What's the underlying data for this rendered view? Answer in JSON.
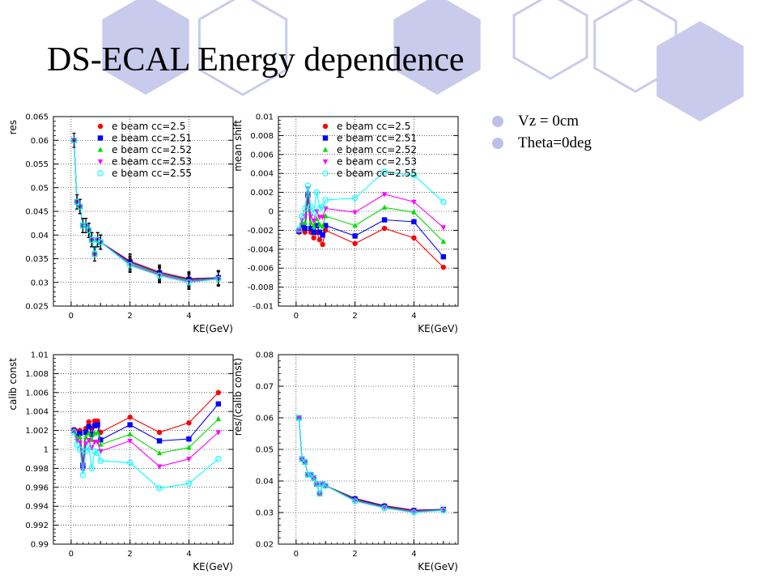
{
  "slide": {
    "title": "DS-ECAL Energy dependence",
    "bullets": [
      "Vz = 0cm",
      "Theta=0deg"
    ],
    "hex_color": "#c9cbed"
  },
  "chart_data": [
    {
      "type": "line",
      "panel": "top-left",
      "xlabel": "KE(GeV)",
      "ylabel": "res",
      "xlim": [
        -0.6,
        5.5
      ],
      "ylim": [
        0.025,
        0.065
      ],
      "x_ticks": [
        0,
        2,
        4
      ],
      "x_tick_labels": [
        "0",
        "2",
        "4"
      ],
      "y_ticks": [
        0.025,
        0.03,
        0.035,
        0.04,
        0.045,
        0.05,
        0.055,
        0.06,
        0.065
      ],
      "y_tick_labels": [
        "0.025",
        "0.03",
        "0.035",
        "0.04",
        "0.045",
        "0.05",
        "0.055",
        "0.06",
        "0.065"
      ],
      "grid": true,
      "legend": "top-right",
      "x": [
        0.1,
        0.2,
        0.3,
        0.4,
        0.5,
        0.6,
        0.7,
        0.8,
        0.9,
        1,
        2,
        3,
        4,
        5
      ],
      "error_bars": true,
      "yerr": 0.0015,
      "series": [
        {
          "name": "e beam cc=2.5",
          "color": "#ff0000",
          "marker": "circle-cross",
          "values": [
            0.06,
            0.047,
            0.046,
            0.042,
            0.042,
            0.041,
            0.039,
            0.036,
            0.039,
            0.0385,
            0.0345,
            0.0322,
            0.0308,
            0.031
          ]
        },
        {
          "name": "e beam cc=2.51",
          "color": "#0000ff",
          "marker": "square",
          "values": [
            0.06,
            0.047,
            0.046,
            0.042,
            0.042,
            0.041,
            0.039,
            0.036,
            0.039,
            0.0385,
            0.0343,
            0.032,
            0.0306,
            0.031
          ]
        },
        {
          "name": "e beam cc=2.52",
          "color": "#00dd00",
          "marker": "triangle-up",
          "values": [
            0.06,
            0.047,
            0.046,
            0.042,
            0.042,
            0.041,
            0.039,
            0.036,
            0.039,
            0.0385,
            0.034,
            0.0318,
            0.0304,
            0.0309
          ]
        },
        {
          "name": "e beam cc=2.53",
          "color": "#ff00ff",
          "marker": "triangle-down",
          "values": [
            0.06,
            0.047,
            0.046,
            0.042,
            0.042,
            0.041,
            0.039,
            0.036,
            0.039,
            0.0385,
            0.0338,
            0.0316,
            0.0302,
            0.0308
          ]
        },
        {
          "name": "e beam cc=2.55",
          "color": "#00ffff",
          "marker": "circle-open",
          "values": [
            0.06,
            0.047,
            0.046,
            0.042,
            0.042,
            0.041,
            0.039,
            0.036,
            0.039,
            0.0385,
            0.0336,
            0.0314,
            0.03,
            0.0307
          ]
        }
      ]
    },
    {
      "type": "line",
      "panel": "top-right",
      "xlabel": "KE(GeV)",
      "ylabel": "mean shift",
      "xlim": [
        -0.6,
        5.5
      ],
      "ylim": [
        -0.01,
        0.01
      ],
      "x_ticks": [
        0,
        2,
        4
      ],
      "x_tick_labels": [
        "0",
        "2",
        "4"
      ],
      "y_ticks": [
        -0.01,
        -0.008,
        -0.006,
        -0.004,
        -0.002,
        0,
        0.002,
        0.004,
        0.006,
        0.008,
        0.01
      ],
      "y_tick_labels": [
        "-0.01",
        "-0.008",
        "-0.006",
        "-0.004",
        "-0.002",
        "0",
        "0.002",
        "0.004",
        "0.006",
        "0.008",
        "0.01"
      ],
      "grid": true,
      "legend": "top-right",
      "x": [
        0.1,
        0.2,
        0.3,
        0.4,
        0.5,
        0.6,
        0.7,
        0.8,
        0.9,
        1,
        2,
        3,
        4,
        5
      ],
      "series": [
        {
          "name": "e beam cc=2.5",
          "color": "#ff0000",
          "marker": "circle-cross",
          "values": [
            -0.0022,
            -0.0018,
            -0.0022,
            0.0015,
            -0.0022,
            -0.0028,
            -0.0022,
            -0.003,
            -0.0035,
            -0.002,
            -0.0034,
            -0.0018,
            -0.0028,
            -0.0059
          ]
        },
        {
          "name": "e beam cc=2.51",
          "color": "#0000ff",
          "marker": "square",
          "values": [
            -0.0021,
            -0.0015,
            -0.0018,
            0.0018,
            -0.0018,
            -0.0022,
            -0.0015,
            -0.0022,
            -0.0025,
            -0.0015,
            -0.0026,
            -0.0009,
            -0.0011,
            -0.0048
          ]
        },
        {
          "name": "e beam cc=2.52",
          "color": "#00dd00",
          "marker": "triangle-up",
          "values": [
            -0.002,
            -0.0012,
            -0.0012,
            0.0021,
            -0.0012,
            -0.0016,
            -0.0008,
            -0.0014,
            -0.0016,
            -0.0005,
            -0.0015,
            0.0004,
            -0.0001,
            -0.0032
          ]
        },
        {
          "name": "e beam cc=2.53",
          "color": "#ff00ff",
          "marker": "triangle-down",
          "values": [
            -0.002,
            -0.0009,
            -0.0005,
            0.0024,
            -0.0005,
            -0.001,
            0.0,
            -0.0006,
            -0.0006,
            0.0003,
            -0.0001,
            0.0018,
            0.001,
            -0.0017
          ]
        },
        {
          "name": "e beam cc=2.55",
          "color": "#00ffff",
          "marker": "circle-open",
          "values": [
            -0.0019,
            -0.0005,
            0.0003,
            0.0027,
            0.0005,
            -0.0002,
            0.002,
            0.0003,
            0.0005,
            0.0012,
            0.0014,
            0.0042,
            0.0038,
            0.001
          ]
        }
      ]
    },
    {
      "type": "line",
      "panel": "bottom-left",
      "xlabel": "KE(GeV)",
      "ylabel": "calib const",
      "xlim": [
        -0.6,
        5.5
      ],
      "ylim": [
        0.99,
        1.01
      ],
      "x_ticks": [
        0,
        2,
        4
      ],
      "x_tick_labels": [
        "0",
        "2",
        "4"
      ],
      "y_ticks": [
        0.99,
        0.992,
        0.994,
        0.996,
        0.998,
        1.0,
        1.002,
        1.004,
        1.006,
        1.008,
        1.01
      ],
      "y_tick_labels": [
        "0.99",
        "0.992",
        "0.994",
        "0.996",
        "0.998",
        "1",
        "1.002",
        "1.004",
        "1.006",
        "1.008",
        "1.01"
      ],
      "grid": true,
      "legend": "none",
      "x": [
        0.1,
        0.2,
        0.3,
        0.4,
        0.5,
        0.6,
        0.7,
        0.8,
        0.9,
        1,
        2,
        3,
        4,
        5
      ],
      "series": [
        {
          "name": "e beam cc=2.5",
          "color": "#ff0000",
          "marker": "circle-cross",
          "values": [
            1.0021,
            1.0019,
            1.002,
            0.9985,
            1.0022,
            1.0029,
            1.0022,
            1.003,
            1.003,
            1.0018,
            1.0034,
            1.0018,
            1.0028,
            1.006
          ]
        },
        {
          "name": "e beam cc=2.51",
          "color": "#0000ff",
          "marker": "square",
          "values": [
            1.002,
            1.0016,
            1.0017,
            0.9983,
            1.0018,
            1.0024,
            1.0016,
            1.0025,
            1.0026,
            1.001,
            1.0026,
            1.0009,
            1.0011,
            1.0048
          ]
        },
        {
          "name": "e beam cc=2.52",
          "color": "#00dd00",
          "marker": "triangle-up",
          "values": [
            1.002,
            1.0012,
            1.0013,
            0.998,
            1.0013,
            1.0017,
            1.001,
            1.0017,
            1.0018,
            1.0005,
            1.0016,
            0.9996,
            1.0002,
            1.0032
          ]
        },
        {
          "name": "e beam cc=2.53",
          "color": "#ff00ff",
          "marker": "triangle-down",
          "values": [
            1.0019,
            1.0009,
            1.0007,
            0.9978,
            1.0006,
            1.001,
            1.0002,
            1.0008,
            1.0008,
            0.9998,
            1.0009,
            0.9982,
            0.999,
            1.0018
          ]
        },
        {
          "name": "e beam cc=2.55",
          "color": "#00ffff",
          "marker": "circle-open",
          "values": [
            1.0018,
            1.0005,
            1.0,
            0.9973,
            0.9998,
            1.0003,
            0.998,
            0.9998,
            0.9996,
            0.9988,
            0.9986,
            0.9959,
            0.9964,
            0.999
          ]
        }
      ]
    },
    {
      "type": "line",
      "panel": "bottom-right",
      "xlabel": "KE(GeV)",
      "ylabel": "res/(calib const)",
      "xlim": [
        -0.6,
        5.5
      ],
      "ylim": [
        0.02,
        0.08
      ],
      "x_ticks": [
        0,
        2,
        4
      ],
      "x_tick_labels": [
        "0",
        "2",
        "4"
      ],
      "y_ticks": [
        0.02,
        0.03,
        0.04,
        0.05,
        0.06,
        0.07,
        0.08
      ],
      "y_tick_labels": [
        "0.02",
        "0.03",
        "0.04",
        "0.05",
        "0.06",
        "0.07",
        "0.08"
      ],
      "grid": true,
      "legend": "none",
      "x": [
        0.1,
        0.2,
        0.3,
        0.4,
        0.5,
        0.6,
        0.7,
        0.8,
        0.9,
        1,
        2,
        3,
        4,
        5
      ],
      "series": [
        {
          "name": "e beam cc=2.5",
          "color": "#ff0000",
          "marker": "circle-cross",
          "values": [
            0.06,
            0.047,
            0.046,
            0.042,
            0.042,
            0.041,
            0.039,
            0.036,
            0.039,
            0.0385,
            0.0345,
            0.0322,
            0.0308,
            0.031
          ]
        },
        {
          "name": "e beam cc=2.51",
          "color": "#0000ff",
          "marker": "square",
          "values": [
            0.06,
            0.047,
            0.046,
            0.042,
            0.042,
            0.041,
            0.039,
            0.036,
            0.039,
            0.0385,
            0.0343,
            0.032,
            0.0306,
            0.031
          ]
        },
        {
          "name": "e beam cc=2.52",
          "color": "#00dd00",
          "marker": "triangle-up",
          "values": [
            0.06,
            0.047,
            0.046,
            0.042,
            0.042,
            0.041,
            0.039,
            0.036,
            0.039,
            0.0385,
            0.034,
            0.0318,
            0.0304,
            0.0309
          ]
        },
        {
          "name": "e beam cc=2.53",
          "color": "#ff00ff",
          "marker": "triangle-down",
          "values": [
            0.06,
            0.047,
            0.046,
            0.042,
            0.042,
            0.041,
            0.039,
            0.036,
            0.039,
            0.0385,
            0.0338,
            0.0316,
            0.0302,
            0.0308
          ]
        },
        {
          "name": "e beam cc=2.55",
          "color": "#00ffff",
          "marker": "circle-open",
          "values": [
            0.06,
            0.047,
            0.046,
            0.042,
            0.042,
            0.041,
            0.039,
            0.036,
            0.039,
            0.0385,
            0.0336,
            0.0314,
            0.03,
            0.0307
          ]
        }
      ]
    }
  ]
}
